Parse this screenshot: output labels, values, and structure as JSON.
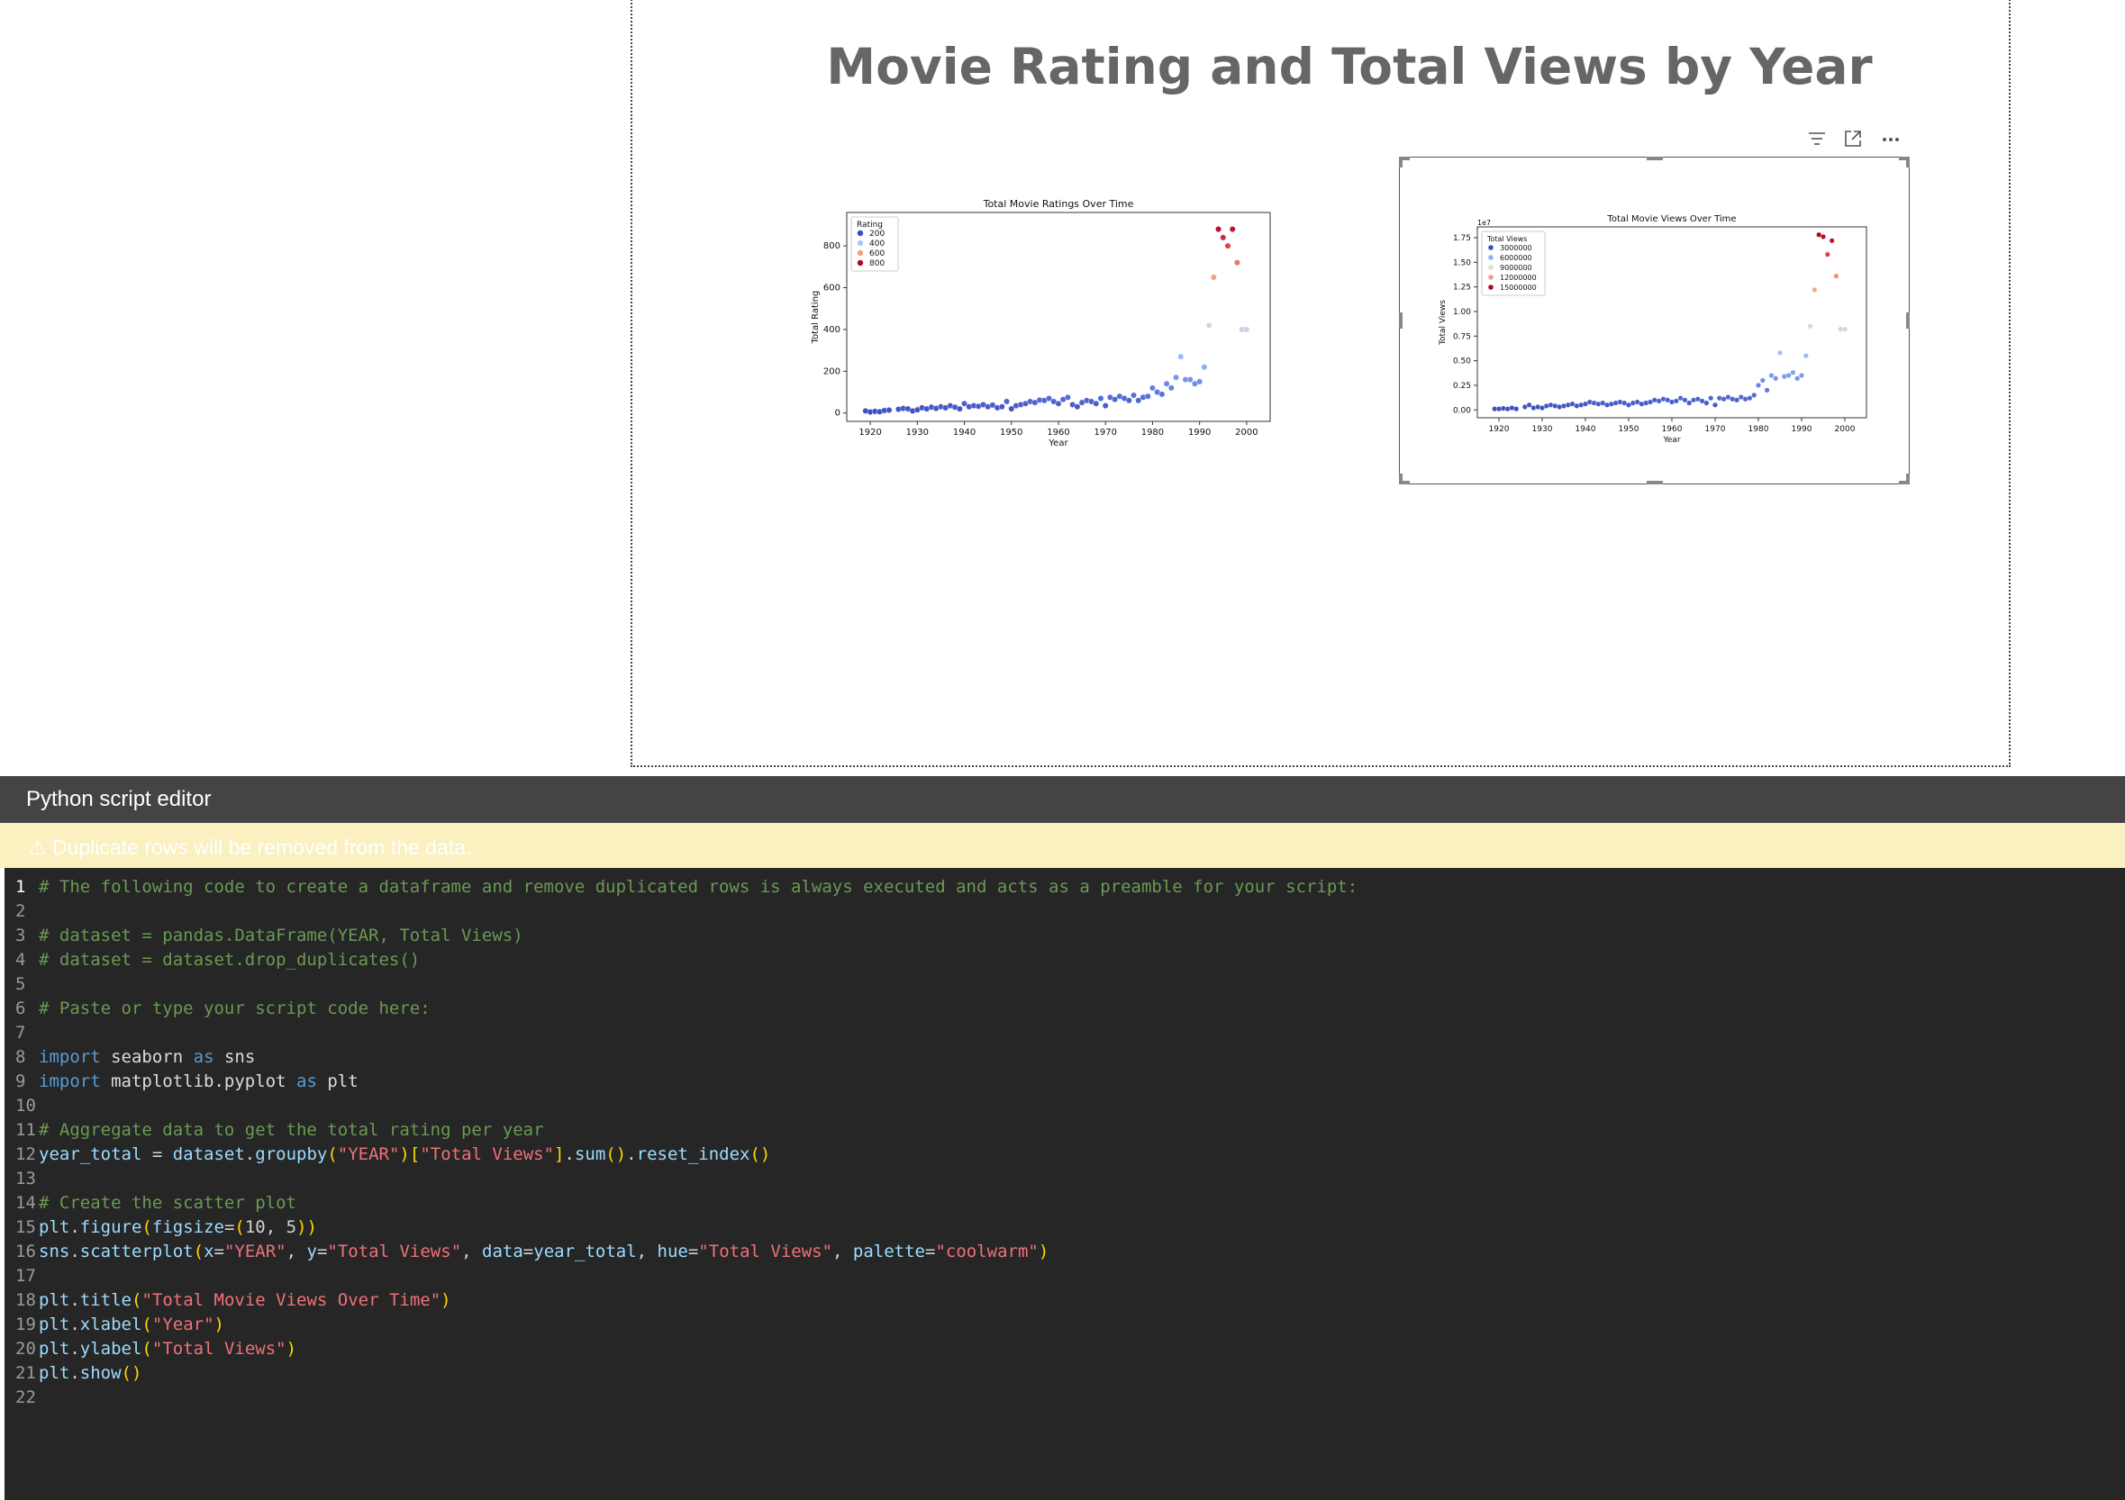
{
  "report": {
    "title": "Movie Rating and Total Views by Year"
  },
  "visual_header_icons": [
    "filter-icon",
    "focus-mode-icon",
    "more-options-icon"
  ],
  "chart_data": [
    {
      "type": "scatter",
      "title": "Total Movie Ratings Over Time",
      "xlabel": "Year",
      "ylabel": "Total Rating",
      "xlim": [
        1915,
        2005
      ],
      "ylim": [
        -40,
        960
      ],
      "xticks": [
        1920,
        1930,
        1940,
        1950,
        1960,
        1970,
        1980,
        1990,
        2000
      ],
      "yticks": [
        0,
        200,
        400,
        600,
        800
      ],
      "grid": false,
      "legend": {
        "title": "Rating",
        "placement": "top-left",
        "entries": [
          "200",
          "400",
          "600",
          "800"
        ],
        "colors": [
          "#3b4cc0",
          "#a9c6fd",
          "#f59f80",
          "#b40426"
        ]
      },
      "hue_range": [
        0,
        900
      ],
      "x": [
        1919,
        1920,
        1921,
        1922,
        1923,
        1924,
        1926,
        1927,
        1928,
        1929,
        1930,
        1931,
        1932,
        1933,
        1934,
        1935,
        1936,
        1937,
        1938,
        1939,
        1940,
        1941,
        1942,
        1943,
        1944,
        1945,
        1946,
        1947,
        1948,
        1949,
        1950,
        1951,
        1952,
        1953,
        1954,
        1955,
        1956,
        1957,
        1958,
        1959,
        1960,
        1961,
        1962,
        1963,
        1964,
        1965,
        1966,
        1967,
        1968,
        1969,
        1970,
        1971,
        1972,
        1973,
        1974,
        1975,
        1976,
        1977,
        1978,
        1979,
        1980,
        1981,
        1982,
        1983,
        1984,
        1985,
        1986,
        1987,
        1988,
        1989,
        1990,
        1991,
        1992,
        1993,
        1994,
        1995,
        1996,
        1997,
        1998,
        1999,
        2000
      ],
      "y": [
        10,
        5,
        8,
        6,
        12,
        14,
        18,
        22,
        20,
        10,
        15,
        25,
        20,
        28,
        22,
        30,
        25,
        35,
        28,
        20,
        45,
        30,
        35,
        32,
        40,
        30,
        38,
        25,
        30,
        55,
        20,
        35,
        40,
        45,
        55,
        50,
        62,
        60,
        70,
        55,
        45,
        65,
        75,
        40,
        30,
        50,
        60,
        55,
        45,
        70,
        35,
        75,
        65,
        80,
        70,
        60,
        85,
        60,
        75,
        80,
        120,
        100,
        90,
        140,
        120,
        170,
        270,
        160,
        160,
        140,
        150,
        220,
        420,
        650,
        880,
        840,
        800,
        880,
        720,
        400,
        400
      ]
    },
    {
      "type": "scatter",
      "title": "Total Movie Views Over Time",
      "xlabel": "Year",
      "ylabel": "Total Views",
      "scale_label": "1e7",
      "xlim": [
        1915,
        2005
      ],
      "ylim": [
        -0.08,
        1.86
      ],
      "xticks": [
        1920,
        1930,
        1940,
        1950,
        1960,
        1970,
        1980,
        1990,
        2000
      ],
      "yticks": [
        0.0,
        0.25,
        0.5,
        0.75,
        1.0,
        1.25,
        1.5,
        1.75
      ],
      "grid": false,
      "legend": {
        "title": "Total Views",
        "placement": "top-left",
        "entries": [
          "3000000",
          "6000000",
          "9000000",
          "12000000",
          "15000000"
        ],
        "colors": [
          "#3b4cc0",
          "#8caffe",
          "#dddcdc",
          "#f59f80",
          "#b40426"
        ]
      },
      "hue_range": [
        0,
        1.78
      ],
      "x": [
        1919,
        1920,
        1921,
        1922,
        1923,
        1924,
        1926,
        1927,
        1928,
        1929,
        1930,
        1931,
        1932,
        1933,
        1934,
        1935,
        1936,
        1937,
        1938,
        1939,
        1940,
        1941,
        1942,
        1943,
        1944,
        1945,
        1946,
        1947,
        1948,
        1949,
        1950,
        1951,
        1952,
        1953,
        1954,
        1955,
        1956,
        1957,
        1958,
        1959,
        1960,
        1961,
        1962,
        1963,
        1964,
        1965,
        1966,
        1967,
        1968,
        1969,
        1970,
        1971,
        1972,
        1973,
        1974,
        1975,
        1976,
        1977,
        1978,
        1979,
        1980,
        1981,
        1982,
        1983,
        1984,
        1985,
        1986,
        1987,
        1988,
        1989,
        1990,
        1991,
        1992,
        1993,
        1994,
        1995,
        1996,
        1997,
        1998,
        1999,
        2000
      ],
      "y": [
        0.01,
        0.01,
        0.015,
        0.01,
        0.02,
        0.01,
        0.03,
        0.05,
        0.02,
        0.03,
        0.02,
        0.04,
        0.05,
        0.04,
        0.03,
        0.04,
        0.05,
        0.06,
        0.04,
        0.05,
        0.06,
        0.08,
        0.07,
        0.06,
        0.07,
        0.05,
        0.06,
        0.07,
        0.08,
        0.07,
        0.05,
        0.07,
        0.08,
        0.06,
        0.07,
        0.08,
        0.1,
        0.09,
        0.11,
        0.1,
        0.08,
        0.09,
        0.12,
        0.1,
        0.07,
        0.1,
        0.11,
        0.09,
        0.07,
        0.12,
        0.05,
        0.12,
        0.11,
        0.13,
        0.11,
        0.1,
        0.13,
        0.11,
        0.12,
        0.15,
        0.25,
        0.3,
        0.2,
        0.35,
        0.32,
        0.58,
        0.34,
        0.35,
        0.38,
        0.32,
        0.35,
        0.55,
        0.85,
        1.22,
        1.78,
        1.76,
        1.58,
        1.72,
        1.36,
        0.82,
        0.82
      ]
    }
  ],
  "editor": {
    "title": "Python script editor",
    "warning": "⚠ Duplicate rows will be removed from the data.",
    "lines": [
      {
        "n": "1",
        "tokens": [
          [
            "c",
            "# The following code to create a dataframe and remove duplicated rows is always executed and acts as a preamble for your script:"
          ]
        ]
      },
      {
        "n": "2",
        "tokens": []
      },
      {
        "n": "3",
        "tokens": [
          [
            "c",
            "# dataset = pandas.DataFrame(YEAR, Total Views)"
          ]
        ]
      },
      {
        "n": "4",
        "tokens": [
          [
            "c",
            "# dataset = dataset.drop_duplicates()"
          ]
        ]
      },
      {
        "n": "5",
        "tokens": []
      },
      {
        "n": "6",
        "tokens": [
          [
            "c",
            "# Paste or type your script code here:"
          ]
        ]
      },
      {
        "n": "7",
        "tokens": []
      },
      {
        "n": "8",
        "tokens": [
          [
            "k",
            "import"
          ],
          [
            "p",
            " "
          ],
          [
            "m",
            "seaborn"
          ],
          [
            "p",
            " "
          ],
          [
            "k",
            "as"
          ],
          [
            "p",
            " "
          ],
          [
            "m",
            "sns"
          ]
        ]
      },
      {
        "n": "9",
        "tokens": [
          [
            "k",
            "import"
          ],
          [
            "p",
            " "
          ],
          [
            "m",
            "matplotlib.pyplot"
          ],
          [
            "p",
            " "
          ],
          [
            "k",
            "as"
          ],
          [
            "p",
            " "
          ],
          [
            "m",
            "plt"
          ]
        ]
      },
      {
        "n": "10",
        "tokens": []
      },
      {
        "n": "11",
        "tokens": [
          [
            "c",
            "# Aggregate data to get the total rating per year"
          ]
        ]
      },
      {
        "n": "12",
        "tokens": [
          [
            "i",
            "year_total"
          ],
          [
            "p",
            " = "
          ],
          [
            "i",
            "dataset"
          ],
          [
            "p",
            "."
          ],
          [
            "i",
            "groupby"
          ],
          [
            "b",
            "("
          ],
          [
            "s",
            "\"YEAR\""
          ],
          [
            "b",
            ")"
          ],
          [
            "b",
            "["
          ],
          [
            "s",
            "\"Total Views\""
          ],
          [
            "b",
            "]"
          ],
          [
            "p",
            "."
          ],
          [
            "i",
            "sum"
          ],
          [
            "b",
            "()"
          ],
          [
            "p",
            "."
          ],
          [
            "i",
            "reset_index"
          ],
          [
            "b",
            "()"
          ]
        ]
      },
      {
        "n": "13",
        "tokens": []
      },
      {
        "n": "14",
        "tokens": [
          [
            "c",
            "# Create the scatter plot"
          ]
        ]
      },
      {
        "n": "15",
        "tokens": [
          [
            "i",
            "plt"
          ],
          [
            "p",
            "."
          ],
          [
            "i",
            "figure"
          ],
          [
            "b",
            "("
          ],
          [
            "i",
            "figsize"
          ],
          [
            "p",
            "="
          ],
          [
            "b",
            "("
          ],
          [
            "p",
            "10, 5"
          ],
          [
            "b",
            ")"
          ],
          [
            "b",
            ")"
          ]
        ]
      },
      {
        "n": "16",
        "tokens": [
          [
            "i",
            "sns"
          ],
          [
            "p",
            "."
          ],
          [
            "i",
            "scatterplot"
          ],
          [
            "b",
            "("
          ],
          [
            "i",
            "x"
          ],
          [
            "p",
            "="
          ],
          [
            "s",
            "\"YEAR\""
          ],
          [
            "p",
            ", "
          ],
          [
            "i",
            "y"
          ],
          [
            "p",
            "="
          ],
          [
            "s",
            "\"Total Views\""
          ],
          [
            "p",
            ", "
          ],
          [
            "i",
            "data"
          ],
          [
            "p",
            "="
          ],
          [
            "i",
            "year_total"
          ],
          [
            "p",
            ", "
          ],
          [
            "i",
            "hue"
          ],
          [
            "p",
            "="
          ],
          [
            "s",
            "\"Total Views\""
          ],
          [
            "p",
            ", "
          ],
          [
            "i",
            "palette"
          ],
          [
            "p",
            "="
          ],
          [
            "s",
            "\"coolwarm\""
          ],
          [
            "b",
            ")"
          ]
        ]
      },
      {
        "n": "17",
        "tokens": []
      },
      {
        "n": "18",
        "tokens": [
          [
            "i",
            "plt"
          ],
          [
            "p",
            "."
          ],
          [
            "i",
            "title"
          ],
          [
            "b",
            "("
          ],
          [
            "s",
            "\"Total Movie Views Over Time\""
          ],
          [
            "b",
            ")"
          ]
        ]
      },
      {
        "n": "19",
        "tokens": [
          [
            "i",
            "plt"
          ],
          [
            "p",
            "."
          ],
          [
            "i",
            "xlabel"
          ],
          [
            "b",
            "("
          ],
          [
            "s",
            "\"Year\""
          ],
          [
            "b",
            ")"
          ]
        ]
      },
      {
        "n": "20",
        "tokens": [
          [
            "i",
            "plt"
          ],
          [
            "p",
            "."
          ],
          [
            "i",
            "ylabel"
          ],
          [
            "b",
            "("
          ],
          [
            "s",
            "\"Total Views\""
          ],
          [
            "b",
            ")"
          ]
        ]
      },
      {
        "n": "21",
        "tokens": [
          [
            "i",
            "plt"
          ],
          [
            "p",
            "."
          ],
          [
            "i",
            "show"
          ],
          [
            "b",
            "()"
          ]
        ]
      },
      {
        "n": "22",
        "tokens": []
      }
    ]
  }
}
